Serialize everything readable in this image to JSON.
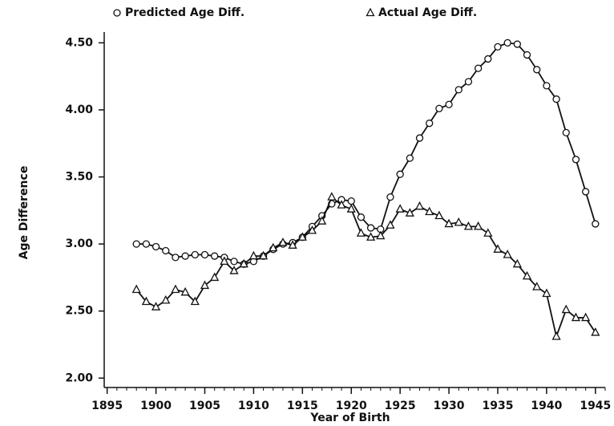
{
  "chart_data": {
    "type": "line",
    "xlabel": "Year of Birth",
    "ylabel": "Age Difference",
    "x": [
      1898,
      1899,
      1900,
      1901,
      1902,
      1903,
      1904,
      1905,
      1906,
      1907,
      1908,
      1909,
      1910,
      1911,
      1912,
      1913,
      1914,
      1915,
      1916,
      1917,
      1918,
      1919,
      1920,
      1921,
      1922,
      1923,
      1924,
      1925,
      1926,
      1927,
      1928,
      1929,
      1930,
      1931,
      1932,
      1933,
      1934,
      1935,
      1936,
      1937,
      1938,
      1939,
      1940,
      1941,
      1942,
      1943,
      1944,
      1945
    ],
    "series": [
      {
        "name": "Predicted Age Diff.",
        "color": "#111111",
        "marker": "circle",
        "values": [
          3.0,
          3.0,
          2.98,
          2.95,
          2.9,
          2.91,
          2.92,
          2.92,
          2.91,
          2.9,
          2.87,
          2.85,
          2.87,
          2.91,
          2.96,
          3.0,
          3.01,
          3.05,
          3.13,
          3.21,
          3.3,
          3.33,
          3.32,
          3.2,
          3.12,
          3.11,
          3.35,
          3.52,
          3.64,
          3.79,
          3.9,
          4.01,
          4.04,
          4.15,
          4.21,
          4.31,
          4.38,
          4.47,
          4.5,
          4.49,
          4.41,
          4.3,
          4.18,
          4.08,
          3.83,
          3.63,
          3.39,
          3.15
        ]
      },
      {
        "name": "Actual Age Diff.",
        "color": "#111111",
        "marker": "triangle",
        "values": [
          2.66,
          2.57,
          2.53,
          2.58,
          2.66,
          2.64,
          2.57,
          2.69,
          2.75,
          2.87,
          2.8,
          2.85,
          2.91,
          2.91,
          2.97,
          3.01,
          2.99,
          3.05,
          3.1,
          3.17,
          3.35,
          3.29,
          3.26,
          3.08,
          3.05,
          3.06,
          3.14,
          3.26,
          3.23,
          3.28,
          3.24,
          3.21,
          3.15,
          3.16,
          3.13,
          3.13,
          3.08,
          2.96,
          2.92,
          2.85,
          2.76,
          2.68,
          2.63,
          2.31,
          2.51,
          2.45,
          2.45,
          2.34
        ]
      }
    ],
    "xlim": [
      1894.7,
      1946
    ],
    "xticks": [
      1895,
      1900,
      1905,
      1910,
      1915,
      1920,
      1925,
      1930,
      1935,
      1940,
      1945
    ],
    "ylim": [
      1.93,
      4.58
    ],
    "yticks": [
      {
        "value": 2,
        "label": "2.00"
      },
      {
        "value": 2.5,
        "label": "2.50"
      },
      {
        "value": 3,
        "label": "3.00"
      },
      {
        "value": 3.5,
        "label": "3.50"
      },
      {
        "value": 4,
        "label": "4.00"
      },
      {
        "value": 4.5,
        "label": "4.50"
      }
    ],
    "grid": false,
    "legend": "top"
  }
}
